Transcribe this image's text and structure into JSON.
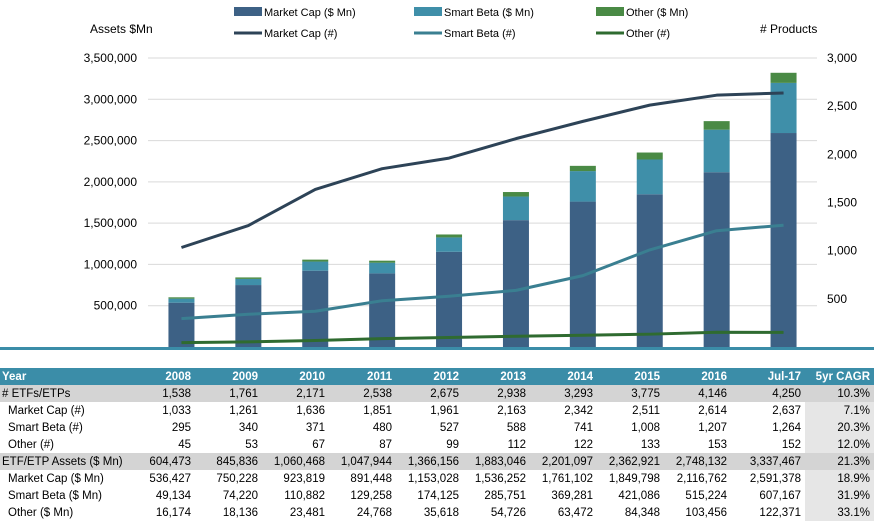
{
  "chart_data": {
    "type": "bar",
    "categories": [
      "2008",
      "2009",
      "2010",
      "2011",
      "2012",
      "2013",
      "2014",
      "2015",
      "2016",
      "Jul-17"
    ],
    "ylabel_left": "Assets $Mn",
    "ylabel_right": "# Products",
    "ylim_left": [
      0,
      3500000
    ],
    "ylim_right": [
      0,
      3000
    ],
    "yticks_left": [
      "500,000",
      "1,000,000",
      "1,500,000",
      "2,000,000",
      "2,500,000",
      "3,000,000",
      "3,500,000"
    ],
    "yticks_right": [
      "500",
      "1,000",
      "1,500",
      "2,000",
      "2,500",
      "3,000"
    ],
    "bar_series": [
      {
        "name": "Market Cap ($ Mn)",
        "color": "#3d6185",
        "values": [
          536427,
          750228,
          923819,
          891448,
          1153028,
          1536252,
          1761102,
          1849798,
          2116762,
          2591378
        ]
      },
      {
        "name": "Smart Beta ($ Mn)",
        "color": "#3f8fa9",
        "values": [
          49134,
          74220,
          110882,
          129258,
          174125,
          285751,
          369281,
          421086,
          515224,
          607167
        ]
      },
      {
        "name": "Other ($ Mn)",
        "color": "#4a8a45",
        "values": [
          16174,
          18136,
          23481,
          24768,
          35618,
          54726,
          63472,
          84348,
          103456,
          122371
        ]
      }
    ],
    "line_series": [
      {
        "name": "Market Cap (#)",
        "color": "#2d4357",
        "values": [
          1033,
          1261,
          1636,
          1851,
          1961,
          2163,
          2342,
          2511,
          2614,
          2637
        ]
      },
      {
        "name": "Smart Beta (#)",
        "color": "#3a7f91",
        "values": [
          295,
          340,
          371,
          480,
          527,
          588,
          741,
          1008,
          1207,
          1264
        ]
      },
      {
        "name": "Other (#)",
        "color": "#2f6b30",
        "values": [
          45,
          53,
          67,
          87,
          99,
          112,
          122,
          133,
          153,
          152
        ]
      }
    ],
    "legend_position": "top",
    "grid": true
  },
  "table": {
    "header": [
      "Year",
      "2008",
      "2009",
      "2010",
      "2011",
      "2012",
      "2013",
      "2014",
      "2015",
      "2016",
      "Jul-17",
      "5yr CAGR"
    ],
    "rows": [
      {
        "style": "bold",
        "cells": [
          "# ETFs/ETPs",
          "1,538",
          "1,761",
          "2,171",
          "2,538",
          "2,675",
          "2,938",
          "3,293",
          "3,775",
          "4,146",
          "4,250",
          "10.3%"
        ]
      },
      {
        "style": "sub",
        "cells": [
          "Market Cap (#)",
          "1,033",
          "1,261",
          "1,636",
          "1,851",
          "1,961",
          "2,163",
          "2,342",
          "2,511",
          "2,614",
          "2,637",
          "7.1%"
        ]
      },
      {
        "style": "sub",
        "cells": [
          "Smart Beta (#)",
          "295",
          "340",
          "371",
          "480",
          "527",
          "588",
          "741",
          "1,008",
          "1,207",
          "1,264",
          "20.3%"
        ]
      },
      {
        "style": "sub",
        "cells": [
          "Other (#)",
          "45",
          "53",
          "67",
          "87",
          "99",
          "112",
          "122",
          "133",
          "153",
          "152",
          "12.0%"
        ]
      },
      {
        "style": "bold",
        "cells": [
          "ETF/ETP Assets ($ Mn)",
          "604,473",
          "845,836",
          "1,060,468",
          "1,047,944",
          "1,366,156",
          "1,883,046",
          "2,201,097",
          "2,362,921",
          "2,748,132",
          "3,337,467",
          "21.3%"
        ]
      },
      {
        "style": "sub",
        "cells": [
          "Market Cap ($ Mn)",
          "536,427",
          "750,228",
          "923,819",
          "891,448",
          "1,153,028",
          "1,536,252",
          "1,761,102",
          "1,849,798",
          "2,116,762",
          "2,591,378",
          "18.9%"
        ]
      },
      {
        "style": "sub",
        "cells": [
          "Smart Beta ($ Mn)",
          "49,134",
          "74,220",
          "110,882",
          "129,258",
          "174,125",
          "285,751",
          "369,281",
          "421,086",
          "515,224",
          "607,167",
          "31.9%"
        ]
      },
      {
        "style": "sub",
        "cells": [
          "Other ($ Mn)",
          "16,174",
          "18,136",
          "23,481",
          "24,768",
          "35,618",
          "54,726",
          "63,472",
          "84,348",
          "103,456",
          "122,371",
          "33.1%"
        ]
      }
    ]
  }
}
